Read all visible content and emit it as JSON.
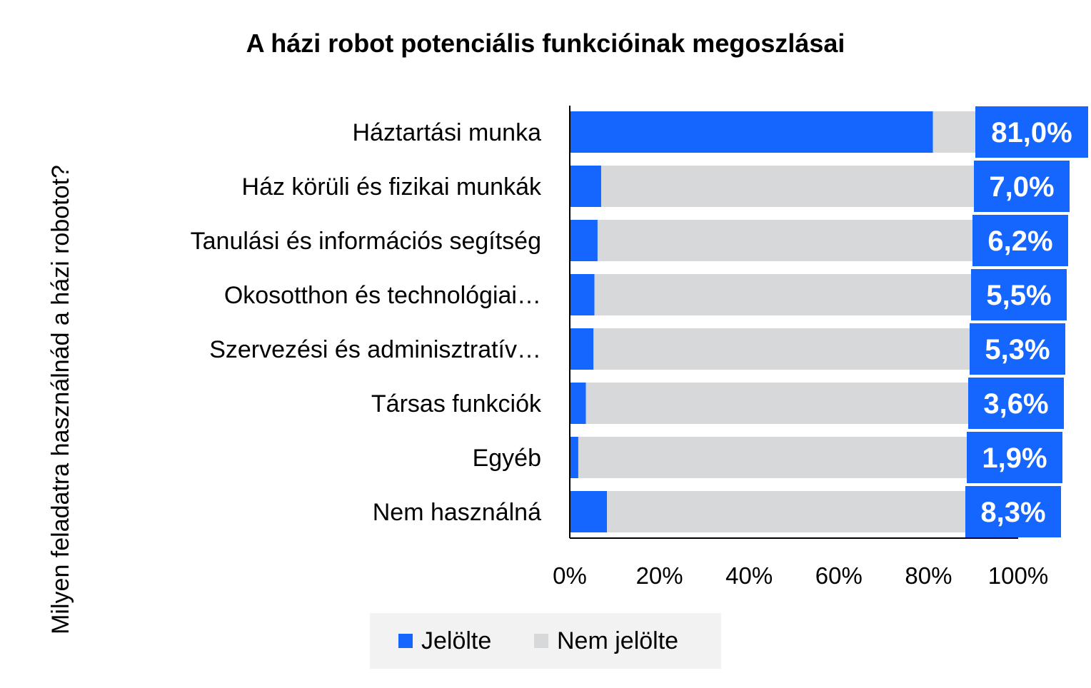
{
  "chart_data": {
    "type": "bar",
    "orientation": "horizontal",
    "stacked": "percent",
    "title": "A házi robot potenciális funkcióinak megoszlásai",
    "ylabel": "Milyen feladatra használnád a házi robotot?",
    "xlabel": "",
    "categories": [
      "Háztartási munka",
      "Ház körüli és fizikai munkák",
      "Tanulási és információs segítség",
      "Okosotthon és technológiai…",
      "Szervezési és adminisztratív…",
      "Társas funkciók",
      "Egyéb",
      "Nem használná"
    ],
    "series": [
      {
        "name": "Jelölte",
        "color": "#1565ff",
        "values": [
          81.0,
          7.0,
          6.2,
          5.5,
          5.3,
          3.6,
          1.9,
          8.3
        ]
      },
      {
        "name": "Nem jelölte",
        "color": "#d6d8da",
        "values": [
          19.0,
          93.0,
          93.8,
          94.5,
          94.7,
          96.4,
          98.1,
          91.7
        ]
      }
    ],
    "data_labels": [
      "81,0%",
      "7,0%",
      "6,2%",
      "5,5%",
      "5,3%",
      "3,6%",
      "1,9%",
      "8,3%"
    ],
    "xlim": [
      0,
      100
    ],
    "xticks": [
      "0%",
      "20%",
      "40%",
      "60%",
      "80%",
      "100%"
    ],
    "grid": false,
    "legend_position": "bottom"
  }
}
